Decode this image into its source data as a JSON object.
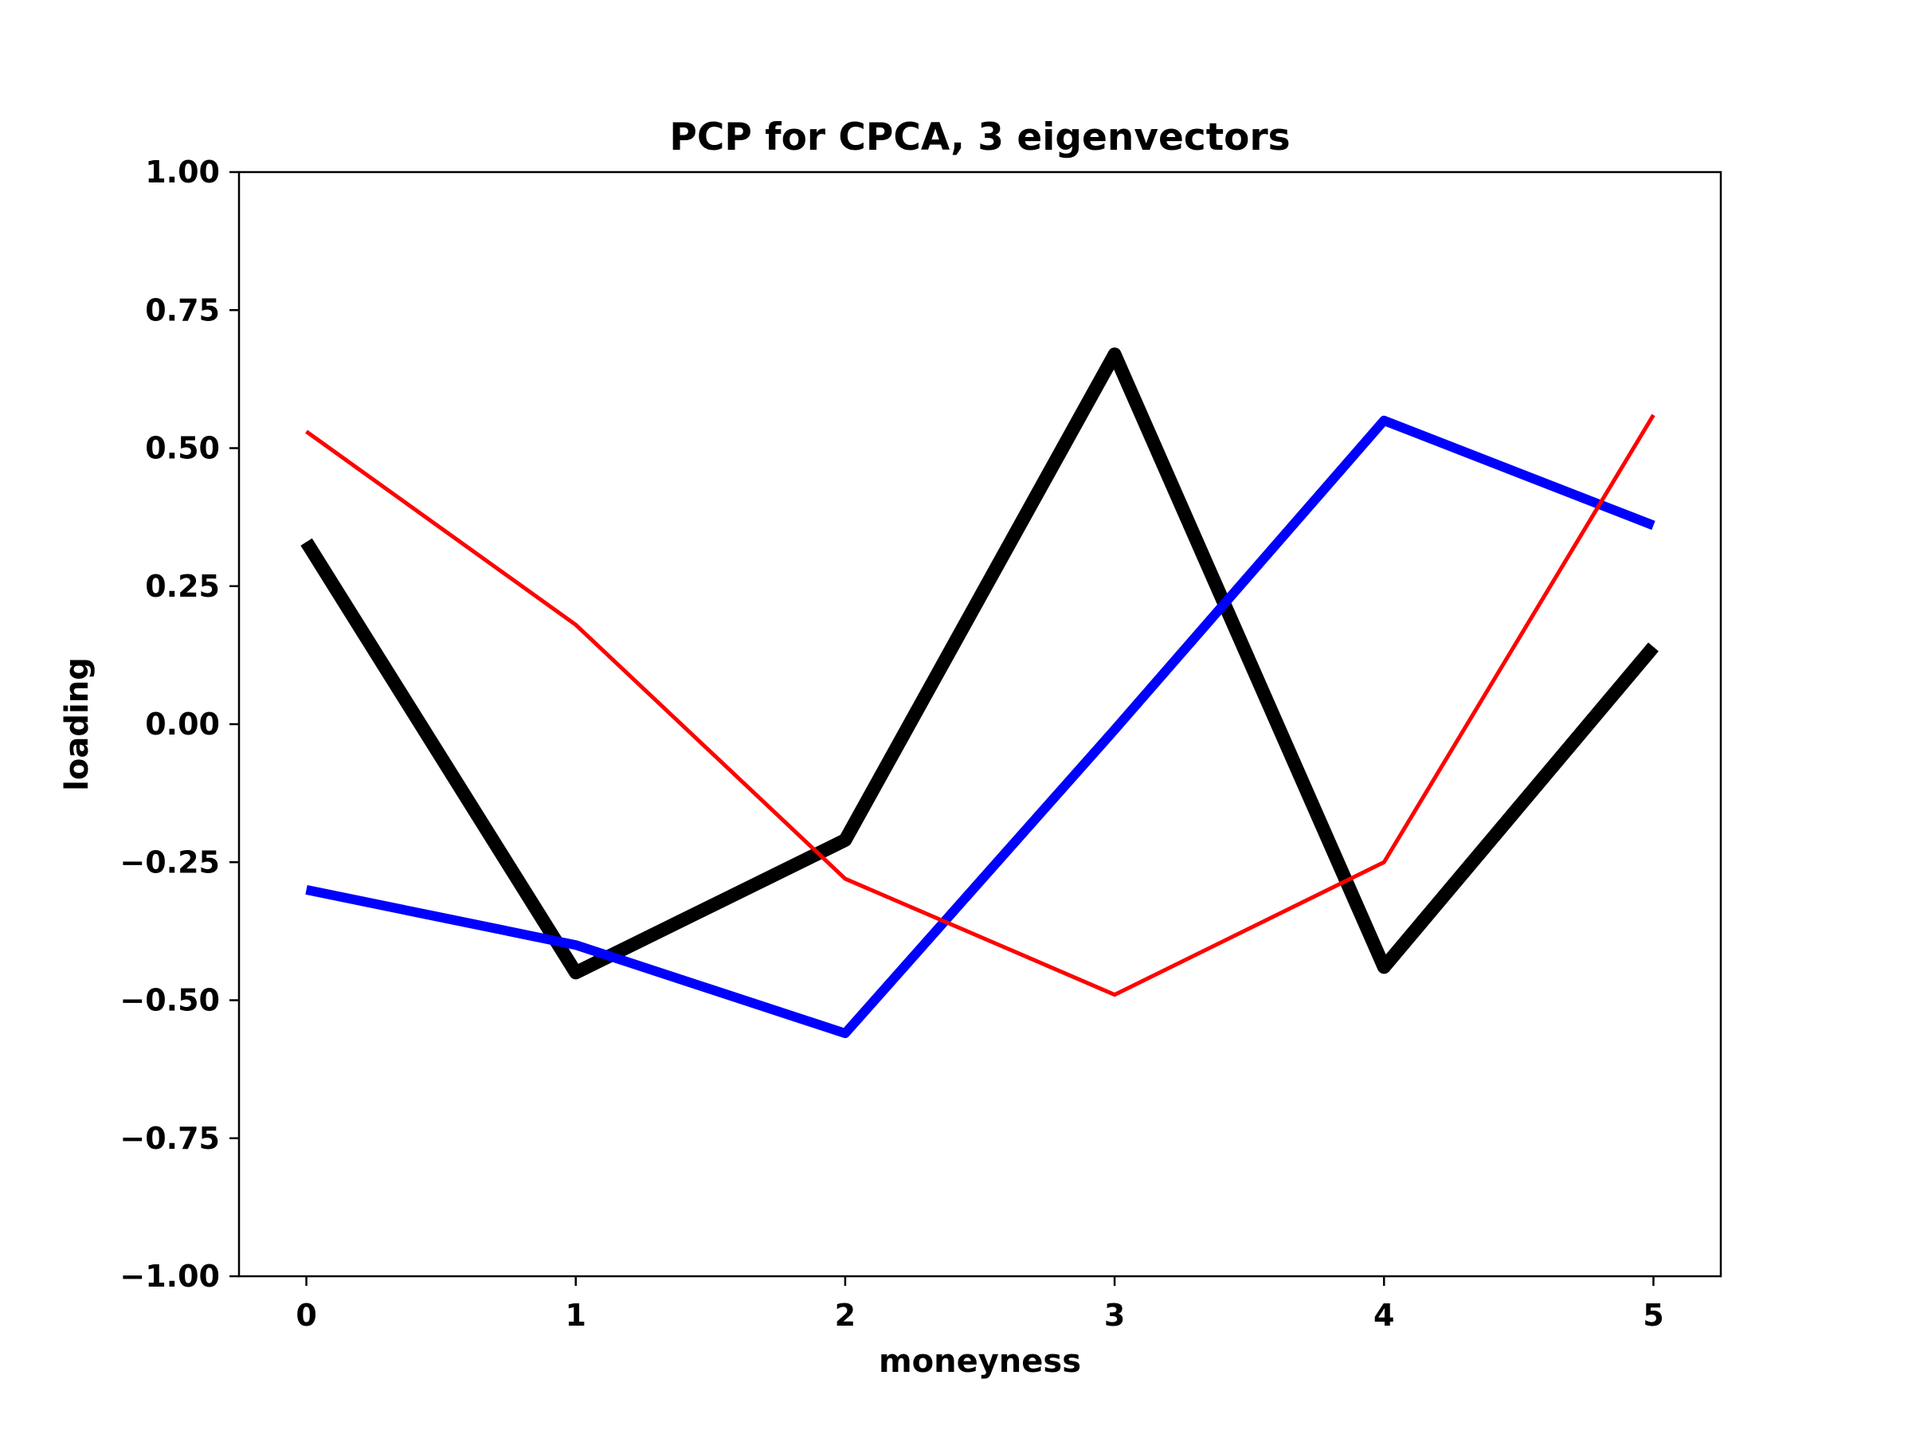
{
  "chart_data": {
    "type": "line",
    "title": "PCP for CPCA, 3 eigenvectors",
    "xlabel": "moneyness",
    "ylabel": "loading",
    "x": [
      0,
      1,
      2,
      3,
      4,
      5
    ],
    "xlim": [
      -0.25,
      5.25
    ],
    "ylim": [
      -1.0,
      1.0
    ],
    "xticks": [
      0,
      1,
      2,
      3,
      4,
      5
    ],
    "xtick_labels": [
      "0",
      "1",
      "2",
      "3",
      "4",
      "5"
    ],
    "yticks": [
      1.0,
      0.75,
      0.5,
      0.25,
      0.0,
      -0.25,
      -0.5,
      -0.75,
      -1.0
    ],
    "ytick_labels": [
      "1.00",
      "0.75",
      "0.50",
      "0.25",
      "0.00",
      "−0.25",
      "−0.50",
      "−0.75",
      "−1.00"
    ],
    "grid": false,
    "legend": "none",
    "series": [
      {
        "color": "#000000",
        "values": [
          0.33,
          -0.45,
          -0.21,
          0.67,
          -0.44,
          0.14
        ]
      },
      {
        "color": "#0000ff",
        "values": [
          -0.3,
          -0.4,
          -0.56,
          -0.01,
          0.55,
          0.36
        ]
      },
      {
        "color": "#ff0000",
        "values": [
          0.53,
          0.18,
          -0.28,
          -0.49,
          -0.25,
          0.56
        ]
      }
    ]
  }
}
